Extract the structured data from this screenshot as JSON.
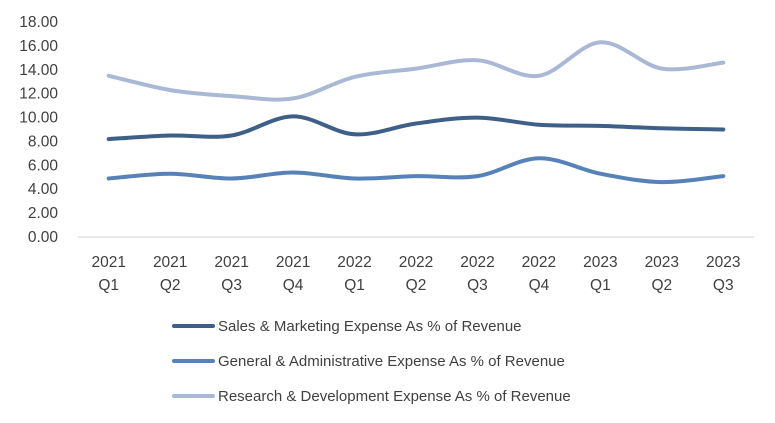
{
  "chart_data": {
    "type": "line",
    "title": "",
    "xlabel": "",
    "ylabel": "",
    "categories": [
      [
        "2021",
        "Q1"
      ],
      [
        "2021",
        "Q2"
      ],
      [
        "2021",
        "Q3"
      ],
      [
        "2021",
        "Q4"
      ],
      [
        "2022",
        "Q1"
      ],
      [
        "2022",
        "Q2"
      ],
      [
        "2022",
        "Q3"
      ],
      [
        "2022",
        "Q4"
      ],
      [
        "2023",
        "Q1"
      ],
      [
        "2023",
        "Q2"
      ],
      [
        "2023",
        "Q3"
      ]
    ],
    "ylim": [
      0,
      18
    ],
    "yticks": [
      "0.00",
      "2.00",
      "4.00",
      "6.00",
      "8.00",
      "10.00",
      "12.00",
      "14.00",
      "16.00",
      "18.00"
    ],
    "grid": false,
    "legend_position": "bottom",
    "series": [
      {
        "name": "Sales & Marketing Expense As % of Revenue",
        "color": "#3e5f87",
        "values": [
          8.2,
          8.5,
          8.5,
          10.1,
          8.6,
          9.5,
          10.0,
          9.4,
          9.3,
          9.1,
          9.0
        ]
      },
      {
        "name": "General & Administrative Expense As % of Revenue",
        "color": "#5681b9",
        "values": [
          4.9,
          5.3,
          4.9,
          5.4,
          4.9,
          5.1,
          5.1,
          6.6,
          5.3,
          4.6,
          5.1
        ]
      },
      {
        "name": "Research & Development Expense As % of Revenue",
        "color": "#a8b8d5",
        "values": [
          13.5,
          12.3,
          11.8,
          11.6,
          13.4,
          14.1,
          14.8,
          13.5,
          16.3,
          14.1,
          14.6
        ]
      }
    ]
  }
}
